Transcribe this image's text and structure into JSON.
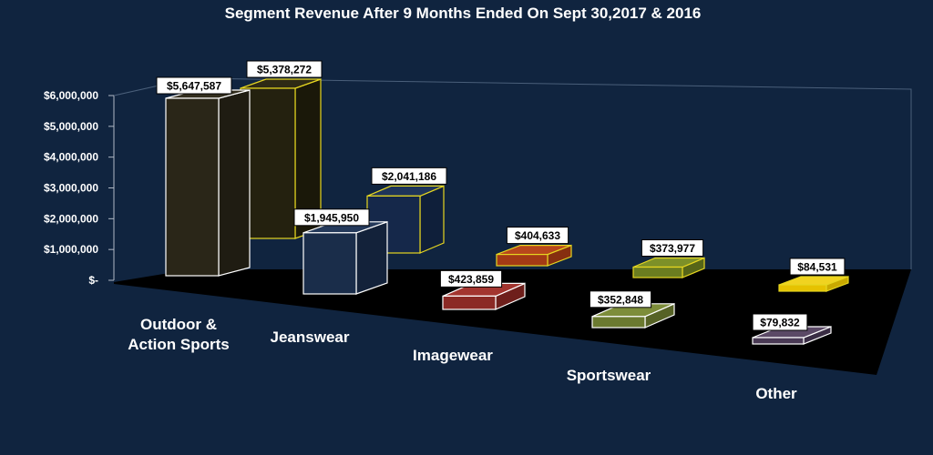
{
  "chart_data": {
    "type": "bar",
    "title": "Segment Revenue After 9 Months Ended On Sept 30,2017 & 2016",
    "categories": [
      [
        "Outdoor &",
        "Action Sports"
      ],
      [
        "Jeanswear"
      ],
      [
        "Imagewear"
      ],
      [
        "Sportswear"
      ],
      [
        "Other"
      ]
    ],
    "y_ticks": [
      "$-",
      "$1,000,000",
      "$2,000,000",
      "$3,000,000",
      "$4,000,000",
      "$5,000,000",
      "$6,000,000"
    ],
    "ylim": [
      0,
      6000000
    ],
    "series": [
      {
        "values": [
          5647587,
          1945950,
          423859,
          352848,
          79832
        ],
        "labels": [
          "$5,647,587",
          "$1,945,950",
          "$423,859",
          "$352,848",
          "$79,832"
        ]
      },
      {
        "values": [
          5378272,
          2041186,
          404633,
          373977,
          84531
        ],
        "labels": [
          "$5,378,272",
          "$2,041,186",
          "$404,633",
          "$373,977",
          "$84,531"
        ]
      }
    ],
    "bar_colors": {
      "front": [
        {
          "fill": "#2a2618",
          "side": "#1f1c12",
          "top": "#332e1e",
          "stroke": "#ffffff"
        },
        {
          "fill": "#1a2d4a",
          "side": "#13223a",
          "top": "#24395a",
          "stroke": "#ffffff"
        },
        {
          "fill": "#8b2a25",
          "side": "#6e1f1b",
          "top": "#a3352f",
          "stroke": "#ffffff"
        },
        {
          "fill": "#6b7a30",
          "side": "#566226",
          "top": "#7d8d3a",
          "stroke": "#ffffff"
        },
        {
          "fill": "#4a3a55",
          "side": "#3a2d44",
          "top": "#5b4966",
          "stroke": "#ffffff"
        }
      ],
      "back": [
        {
          "fill": "#24210f",
          "side": "#1a1809",
          "top": "#2e2a15",
          "stroke": "#e6d620"
        },
        {
          "fill": "#15284a",
          "side": "#0f1f3a",
          "top": "#1e345a",
          "stroke": "#e6d620"
        },
        {
          "fill": "#a33a15",
          "side": "#862f10",
          "top": "#b8471c",
          "stroke": "#e6d620"
        },
        {
          "fill": "#6b7d20",
          "side": "#566518",
          "top": "#7d9028",
          "stroke": "#e6d620"
        },
        {
          "fill": "#e6c200",
          "side": "#c9a900",
          "top": "#f0d320",
          "stroke": "#e6d620"
        }
      ]
    },
    "background_color": "#10243f",
    "floor_color": "#000000",
    "grid": false,
    "legend": "none"
  }
}
